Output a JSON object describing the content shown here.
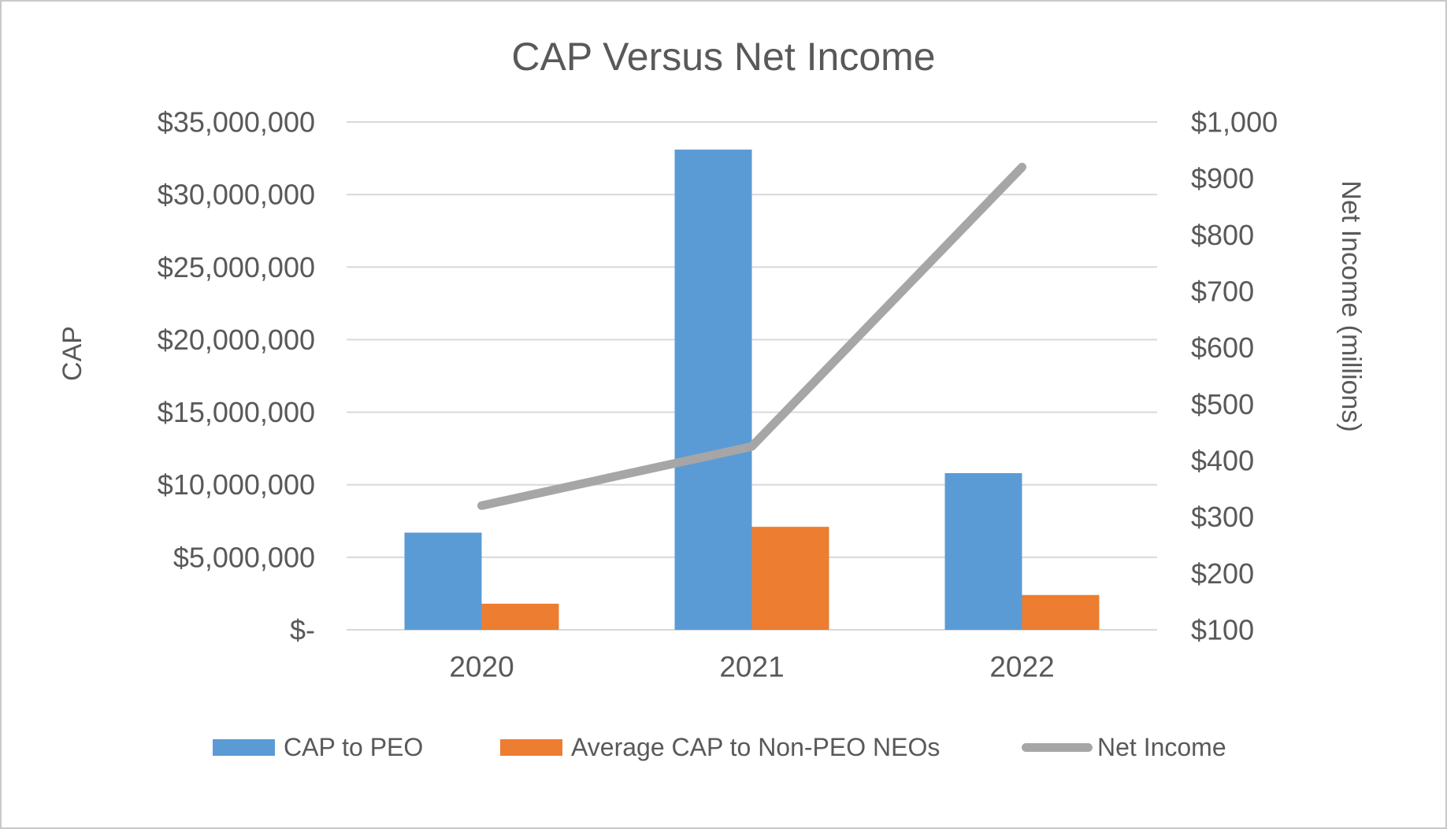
{
  "title": "CAP Versus Net Income",
  "chart_data": {
    "type": "combo",
    "categories": [
      "2020",
      "2021",
      "2022"
    ],
    "series": [
      {
        "name": "CAP to PEO",
        "type": "bar",
        "axis": "left",
        "color": "#5B9BD5",
        "values": [
          6700000,
          33100000,
          10800000
        ]
      },
      {
        "name": "Average CAP to Non-PEO NEOs",
        "type": "bar",
        "axis": "left",
        "color": "#ED7D31",
        "values": [
          1800000,
          7100000,
          2400000
        ]
      },
      {
        "name": "Net Income",
        "type": "line",
        "axis": "right",
        "color": "#A6A6A6",
        "values": [
          320,
          425,
          920
        ]
      }
    ],
    "left_axis": {
      "title": "CAP",
      "min": 0,
      "max": 35000000,
      "step": 5000000,
      "tick_labels": [
        "$35,000,000",
        "$30,000,000",
        "$25,000,000",
        "$20,000,000",
        "$15,000,000",
        "$10,000,000",
        "$5,000,000",
        "$-"
      ]
    },
    "right_axis": {
      "title": "Net Income (millions)",
      "min": 100,
      "max": 1000,
      "step": 100,
      "tick_labels": [
        "$1,000",
        "$900",
        "$800",
        "$700",
        "$600",
        "$500",
        "$400",
        "$300",
        "$200",
        "$100"
      ]
    },
    "grid": true,
    "legend_position": "bottom",
    "colors": {
      "grid": "#D9D9D9",
      "text": "#595959"
    }
  }
}
